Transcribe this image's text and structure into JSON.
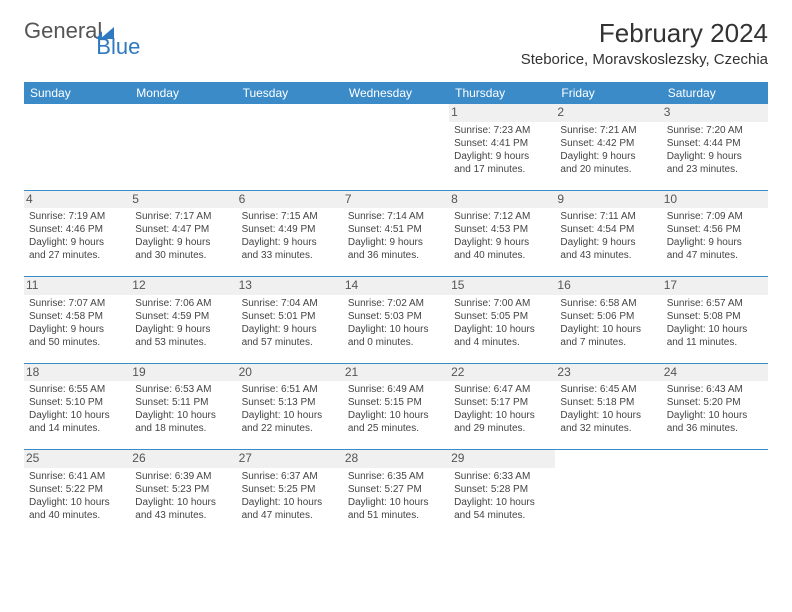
{
  "brand": {
    "part1": "General",
    "part2": "Blue"
  },
  "title": "February 2024",
  "location": "Steborice, Moravskoslezsky, Czechia",
  "colors": {
    "header_bg": "#3b8bc9",
    "header_text": "#ffffff",
    "daynum_bg": "#f0f0f0",
    "border": "#3b8bc9",
    "text": "#333333",
    "brand_blue": "#2f79bf"
  },
  "day_headers": [
    "Sunday",
    "Monday",
    "Tuesday",
    "Wednesday",
    "Thursday",
    "Friday",
    "Saturday"
  ],
  "weeks": [
    [
      {
        "day": "",
        "lines": []
      },
      {
        "day": "",
        "lines": []
      },
      {
        "day": "",
        "lines": []
      },
      {
        "day": "",
        "lines": []
      },
      {
        "day": "1",
        "lines": [
          "Sunrise: 7:23 AM",
          "Sunset: 4:41 PM",
          "Daylight: 9 hours",
          "and 17 minutes."
        ]
      },
      {
        "day": "2",
        "lines": [
          "Sunrise: 7:21 AM",
          "Sunset: 4:42 PM",
          "Daylight: 9 hours",
          "and 20 minutes."
        ]
      },
      {
        "day": "3",
        "lines": [
          "Sunrise: 7:20 AM",
          "Sunset: 4:44 PM",
          "Daylight: 9 hours",
          "and 23 minutes."
        ]
      }
    ],
    [
      {
        "day": "4",
        "lines": [
          "Sunrise: 7:19 AM",
          "Sunset: 4:46 PM",
          "Daylight: 9 hours",
          "and 27 minutes."
        ]
      },
      {
        "day": "5",
        "lines": [
          "Sunrise: 7:17 AM",
          "Sunset: 4:47 PM",
          "Daylight: 9 hours",
          "and 30 minutes."
        ]
      },
      {
        "day": "6",
        "lines": [
          "Sunrise: 7:15 AM",
          "Sunset: 4:49 PM",
          "Daylight: 9 hours",
          "and 33 minutes."
        ]
      },
      {
        "day": "7",
        "lines": [
          "Sunrise: 7:14 AM",
          "Sunset: 4:51 PM",
          "Daylight: 9 hours",
          "and 36 minutes."
        ]
      },
      {
        "day": "8",
        "lines": [
          "Sunrise: 7:12 AM",
          "Sunset: 4:53 PM",
          "Daylight: 9 hours",
          "and 40 minutes."
        ]
      },
      {
        "day": "9",
        "lines": [
          "Sunrise: 7:11 AM",
          "Sunset: 4:54 PM",
          "Daylight: 9 hours",
          "and 43 minutes."
        ]
      },
      {
        "day": "10",
        "lines": [
          "Sunrise: 7:09 AM",
          "Sunset: 4:56 PM",
          "Daylight: 9 hours",
          "and 47 minutes."
        ]
      }
    ],
    [
      {
        "day": "11",
        "lines": [
          "Sunrise: 7:07 AM",
          "Sunset: 4:58 PM",
          "Daylight: 9 hours",
          "and 50 minutes."
        ]
      },
      {
        "day": "12",
        "lines": [
          "Sunrise: 7:06 AM",
          "Sunset: 4:59 PM",
          "Daylight: 9 hours",
          "and 53 minutes."
        ]
      },
      {
        "day": "13",
        "lines": [
          "Sunrise: 7:04 AM",
          "Sunset: 5:01 PM",
          "Daylight: 9 hours",
          "and 57 minutes."
        ]
      },
      {
        "day": "14",
        "lines": [
          "Sunrise: 7:02 AM",
          "Sunset: 5:03 PM",
          "Daylight: 10 hours",
          "and 0 minutes."
        ]
      },
      {
        "day": "15",
        "lines": [
          "Sunrise: 7:00 AM",
          "Sunset: 5:05 PM",
          "Daylight: 10 hours",
          "and 4 minutes."
        ]
      },
      {
        "day": "16",
        "lines": [
          "Sunrise: 6:58 AM",
          "Sunset: 5:06 PM",
          "Daylight: 10 hours",
          "and 7 minutes."
        ]
      },
      {
        "day": "17",
        "lines": [
          "Sunrise: 6:57 AM",
          "Sunset: 5:08 PM",
          "Daylight: 10 hours",
          "and 11 minutes."
        ]
      }
    ],
    [
      {
        "day": "18",
        "lines": [
          "Sunrise: 6:55 AM",
          "Sunset: 5:10 PM",
          "Daylight: 10 hours",
          "and 14 minutes."
        ]
      },
      {
        "day": "19",
        "lines": [
          "Sunrise: 6:53 AM",
          "Sunset: 5:11 PM",
          "Daylight: 10 hours",
          "and 18 minutes."
        ]
      },
      {
        "day": "20",
        "lines": [
          "Sunrise: 6:51 AM",
          "Sunset: 5:13 PM",
          "Daylight: 10 hours",
          "and 22 minutes."
        ]
      },
      {
        "day": "21",
        "lines": [
          "Sunrise: 6:49 AM",
          "Sunset: 5:15 PM",
          "Daylight: 10 hours",
          "and 25 minutes."
        ]
      },
      {
        "day": "22",
        "lines": [
          "Sunrise: 6:47 AM",
          "Sunset: 5:17 PM",
          "Daylight: 10 hours",
          "and 29 minutes."
        ]
      },
      {
        "day": "23",
        "lines": [
          "Sunrise: 6:45 AM",
          "Sunset: 5:18 PM",
          "Daylight: 10 hours",
          "and 32 minutes."
        ]
      },
      {
        "day": "24",
        "lines": [
          "Sunrise: 6:43 AM",
          "Sunset: 5:20 PM",
          "Daylight: 10 hours",
          "and 36 minutes."
        ]
      }
    ],
    [
      {
        "day": "25",
        "lines": [
          "Sunrise: 6:41 AM",
          "Sunset: 5:22 PM",
          "Daylight: 10 hours",
          "and 40 minutes."
        ]
      },
      {
        "day": "26",
        "lines": [
          "Sunrise: 6:39 AM",
          "Sunset: 5:23 PM",
          "Daylight: 10 hours",
          "and 43 minutes."
        ]
      },
      {
        "day": "27",
        "lines": [
          "Sunrise: 6:37 AM",
          "Sunset: 5:25 PM",
          "Daylight: 10 hours",
          "and 47 minutes."
        ]
      },
      {
        "day": "28",
        "lines": [
          "Sunrise: 6:35 AM",
          "Sunset: 5:27 PM",
          "Daylight: 10 hours",
          "and 51 minutes."
        ]
      },
      {
        "day": "29",
        "lines": [
          "Sunrise: 6:33 AM",
          "Sunset: 5:28 PM",
          "Daylight: 10 hours",
          "and 54 minutes."
        ]
      },
      {
        "day": "",
        "lines": []
      },
      {
        "day": "",
        "lines": []
      }
    ]
  ]
}
